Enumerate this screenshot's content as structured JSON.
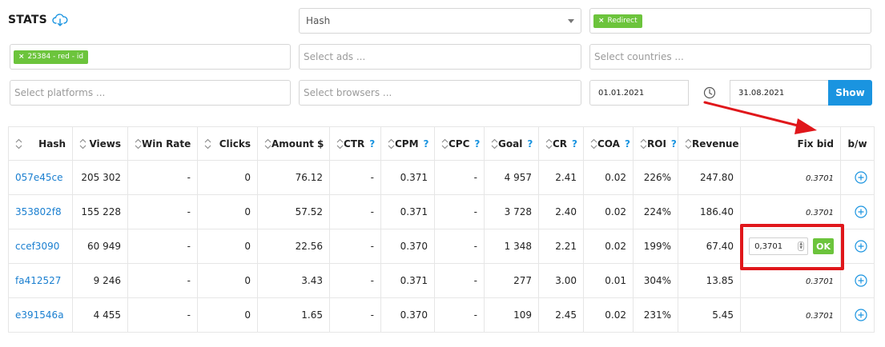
{
  "header": {
    "title": "STATS",
    "icon": "cloud-download-icon"
  },
  "filters": {
    "hash_select": {
      "value": "Hash"
    },
    "type_tag": {
      "label": "Redirect"
    },
    "campaign_tag": {
      "label": "25384 - red - id"
    },
    "ads": {
      "placeholder": "Select ads ..."
    },
    "countries": {
      "placeholder": "Select countries ..."
    },
    "platforms": {
      "placeholder": "Select platforms ..."
    },
    "browsers": {
      "placeholder": "Select browsers ..."
    },
    "date_from": "01.01.2021",
    "date_to": "31.08.2021",
    "show_label": "Show",
    "tag_remove_symbol": "×"
  },
  "table": {
    "columns": {
      "hash": "Hash",
      "views": "Views",
      "win_rate": "Win Rate",
      "clicks": "Clicks",
      "amount": "Amount $",
      "ctr": "CTR",
      "cpm": "CPM",
      "cpc": "CPC",
      "goal": "Goal",
      "cr": "CR",
      "coa": "COA",
      "roi": "ROI",
      "revenue": "Revenue",
      "fix_bid": "Fix bid",
      "bw": "b/w"
    },
    "help_mark": "?",
    "rows": [
      {
        "hash": "057e45ce",
        "views": "205 302",
        "win_rate": "-",
        "clicks": "0",
        "amount": "76.12",
        "ctr": "-",
        "cpm": "0.371",
        "cpc": "-",
        "goal": "4 957",
        "cr": "2.41",
        "coa": "0.02",
        "roi": "226%",
        "revenue": "247.80",
        "fix_bid": "0.3701"
      },
      {
        "hash": "353802f8",
        "views": "155 228",
        "win_rate": "-",
        "clicks": "0",
        "amount": "57.52",
        "ctr": "-",
        "cpm": "0.371",
        "cpc": "-",
        "goal": "3 728",
        "cr": "2.40",
        "coa": "0.02",
        "roi": "224%",
        "revenue": "186.40",
        "fix_bid": "0.3701"
      },
      {
        "hash": "ccef3090",
        "views": "60 949",
        "win_rate": "-",
        "clicks": "0",
        "amount": "22.56",
        "ctr": "-",
        "cpm": "0.370",
        "cpc": "-",
        "goal": "1 348",
        "cr": "2.21",
        "coa": "0.02",
        "roi": "199%",
        "revenue": "67.40",
        "fix_bid_input": "0,3701",
        "ok_label": "OK"
      },
      {
        "hash": "fa412527",
        "views": "9 246",
        "win_rate": "-",
        "clicks": "0",
        "amount": "3.43",
        "ctr": "-",
        "cpm": "0.371",
        "cpc": "-",
        "goal": "277",
        "cr": "3.00",
        "coa": "0.01",
        "roi": "304%",
        "revenue": "13.85",
        "fix_bid": "0.3701"
      },
      {
        "hash": "e391546a",
        "views": "4 455",
        "win_rate": "-",
        "clicks": "0",
        "amount": "1.65",
        "ctr": "-",
        "cpm": "0.370",
        "cpc": "-",
        "goal": "109",
        "cr": "2.45",
        "coa": "0.02",
        "roi": "231%",
        "revenue": "5.45",
        "fix_bid": "0.3701"
      }
    ]
  },
  "colors": {
    "accent": "#1a94e0",
    "tag_green": "#6cc43c",
    "roi_green": "#58b82b",
    "highlight_red": "#e0171b",
    "link_blue": "#1a7fd0"
  }
}
